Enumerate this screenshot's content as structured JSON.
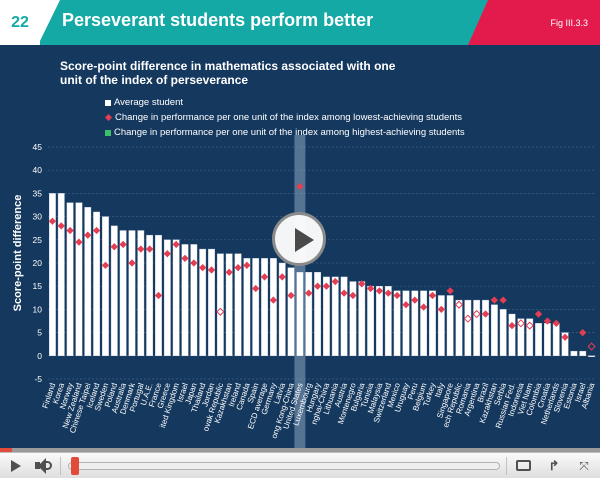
{
  "header": {
    "slide_number": "22",
    "title": "Perseverant students perform better",
    "figure_ref": "Fig III.3.3"
  },
  "colors": {
    "header_teal": "#15a9a6",
    "figure_red": "#e21b4c",
    "slide_background": "#15385e",
    "bar_fill": "#ffffff",
    "low_marker": "#e33e52",
    "high_marker": "#3cc06a",
    "highlight_band": "#8aa4c0"
  },
  "chart_data": {
    "type": "bar",
    "title": "Score-point difference in mathematics associated with one unit of the index of  perseverance",
    "ylabel": "Score-point difference",
    "xlabel": "",
    "ylim": [
      -5,
      45
    ],
    "yticks": [
      -5,
      0,
      5,
      10,
      15,
      20,
      25,
      30,
      35,
      40,
      45
    ],
    "grid": true,
    "legend_position": "top-left",
    "highlighted_category": "United States",
    "categories": [
      "Finland",
      "Korea",
      "Norway",
      "New Zealand",
      "Chinese Taipei",
      "Iceland",
      "Sweden",
      "Poland",
      "Australia",
      "Denmark",
      "Portugal",
      "U.A.E.",
      "France",
      "Greece",
      "United Kingdom",
      "Israel",
      "Japan",
      "Thailand",
      "Jordan",
      "Slovak Republic",
      "Kazakhstan",
      "Ireland",
      "Canada",
      "Spain",
      "OECD average",
      "Germany",
      "Latvia",
      "Hong Kong-China",
      "United States",
      "Luxembourg",
      "Hungary",
      "Shanghai-China",
      "Lithuania",
      "Austria",
      "Montenegro",
      "Bulgaria",
      "Tunisia",
      "Malaysia",
      "Switzerland",
      "Mexico",
      "Uruguay",
      "Peru",
      "Belgium",
      "Turkey",
      "Italy",
      "Singapore",
      "Czech Republic",
      "Romania",
      "Argentina",
      "Brazil",
      "Kazakhstan",
      "Serbia",
      "Russian Fed.",
      "Indonesia",
      "Viet Nam",
      "Colombia",
      "Croatia",
      "Netherlands",
      "Slovenia",
      "Estonia",
      "Israel",
      "Albania"
    ],
    "axis_labels": [
      "Finland",
      "Korea",
      "Norway",
      "New Zealand",
      "Chinese Taipei",
      "Iceland",
      "Sweden",
      "Poland",
      "Australia",
      "Denmark",
      "Portugal",
      "U.A.E.",
      "France",
      "Greece",
      "ited Kingdom",
      "Israel",
      "Japan",
      "Thailand",
      "Jordan",
      "ovak Republic",
      "Kazakhstan",
      "Ireland",
      "Canada",
      "Spain",
      "ECD average",
      "Germany",
      "Latvia",
      "ong Kong-China",
      "United States",
      "Luxembourg",
      "Hungary",
      "nghai-China",
      "Lithuania",
      "Austria",
      "Montenegro",
      "Bulgaria",
      "Tunisia",
      "Malaysia",
      "Switzerland",
      "Mexico",
      "Uruguay",
      "Peru",
      "Belgium",
      "Turkey",
      "Italy",
      "Singapore",
      "ech Republic",
      "Romania",
      "Argentina",
      "Brazil",
      "Kazakhstan",
      "Serbia",
      "Russian Fed.",
      "Indonesia",
      "Viet Nam",
      "Colombia",
      "Croatia",
      "Netherlands",
      "Slovenia",
      "Estonia",
      "Israel",
      "Albania"
    ],
    "series": [
      {
        "name": "Average student",
        "marker": "bar",
        "values": [
          35,
          35,
          33,
          33,
          32,
          31,
          30,
          28,
          27,
          27,
          27,
          26,
          26,
          25,
          25,
          24,
          24,
          23,
          23,
          22,
          22,
          22,
          21,
          21,
          21,
          21,
          20,
          19,
          18,
          18,
          18,
          17,
          17,
          17,
          16,
          16,
          15,
          15,
          15,
          14,
          14,
          14,
          14,
          14,
          13,
          13,
          12,
          12,
          12,
          12,
          11,
          10,
          9,
          8,
          8,
          7,
          7,
          7,
          5,
          1,
          1,
          0
        ]
      },
      {
        "name": "Change in performance per one unit of the index among lowest-achieving students",
        "marker": "diamond",
        "values": [
          29,
          28,
          27,
          24.5,
          26,
          27,
          19.5,
          23.5,
          24,
          20,
          23,
          23,
          13,
          22,
          24,
          21,
          20,
          19,
          18.5,
          9.5,
          18,
          19,
          19.5,
          14.5,
          17,
          12,
          17,
          null,
          21,
          13.5,
          15,
          15,
          16,
          13.5,
          13,
          15.5,
          14.5,
          14,
          13.5,
          13,
          11,
          12,
          10.5,
          13,
          10,
          14,
          11,
          8,
          9,
          9,
          12,
          12,
          6.5,
          7,
          6.5,
          9,
          7.5,
          7,
          4,
          null,
          5,
          2
        ]
      },
      {
        "name": "Change in performance per one unit of the index among highest-achieving students",
        "marker": "square",
        "values": [
          null,
          null,
          null,
          null,
          null,
          null,
          null,
          null,
          null,
          null,
          null,
          null,
          null,
          null,
          null,
          null,
          null,
          null,
          null,
          null,
          null,
          null,
          null,
          null,
          null,
          null,
          null,
          13,
          36.5,
          null,
          null,
          null,
          null,
          null,
          null,
          null,
          null,
          null,
          null,
          null,
          null,
          null,
          null,
          null,
          null,
          null,
          null,
          null,
          null,
          null,
          null,
          null,
          null,
          null,
          null,
          null,
          null,
          null,
          null,
          null,
          null,
          null
        ]
      }
    ],
    "hollow_low_markers": [
      "Slovak Republic",
      "Czech Republic",
      "Romania",
      "Argentina",
      "Indonesia",
      "Viet Nam",
      "Albania"
    ]
  },
  "player": {
    "play_icon": "play-icon",
    "volume_icon": "volume-icon",
    "miniplayer_icon": "miniplayer-icon",
    "share_icon": "share-icon",
    "fullscreen_icon": "fullscreen-icon",
    "progress": 0.02
  },
  "glyphs": {
    "share": "↱",
    "fullscreen": "⤧"
  }
}
